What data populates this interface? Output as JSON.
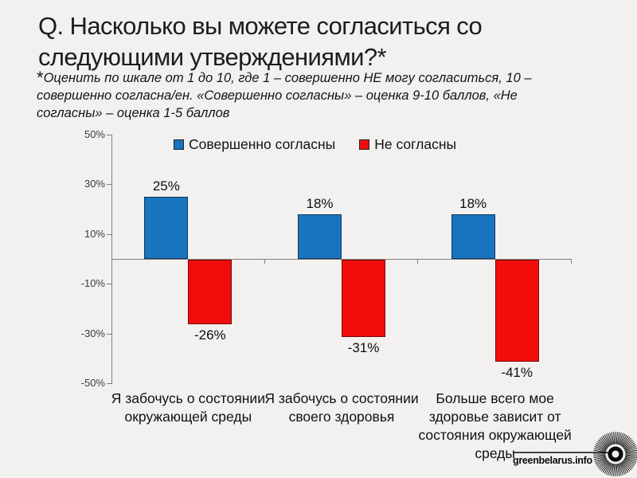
{
  "title": "Q. Насколько вы можете согласиться со следующими утверждениями?*",
  "subtitle_star": "*",
  "subtitle": "Оценить по шкале от 1 до 10, где 1 – совершенно НЕ могу согласиться, 10 – совершенно согласна/ен. «Совершенно согласны» – оценка 9-10 баллов, «Не согласны» – оценка 1-5 баллов",
  "footer": {
    "logo_text": "greenbelarus.info"
  },
  "chart_data": {
    "type": "bar",
    "title": "Q. Насколько вы можете согласиться со следующими утверждениями?*",
    "categories": [
      "Я забочусь о состоянии окружающей среды",
      "Я забочусь о состоянии своего здоровья",
      "Больше всего мое здоровье зависит от состояния окружающей среды"
    ],
    "series": [
      {
        "name": "Совершенно согласны",
        "color": "#1874BE",
        "border_color": "#12365C",
        "values": [
          25,
          18,
          18
        ]
      },
      {
        "name": "Не согласны",
        "color": "#F20D0D",
        "border_color": "#7E0404",
        "values": [
          -26,
          -31,
          -41
        ]
      }
    ],
    "value_labels": [
      [
        "25%",
        "18%",
        "18%"
      ],
      [
        "-26%",
        "-31%",
        "-41%"
      ]
    ],
    "y_ticks": [
      "50%",
      "30%",
      "10%",
      "-10%",
      "-30%",
      "-50%"
    ],
    "y_tick_values": [
      50,
      30,
      10,
      -10,
      -30,
      -50
    ],
    "ylim": [
      -50,
      50
    ],
    "grid": false,
    "legend_position": "top"
  }
}
